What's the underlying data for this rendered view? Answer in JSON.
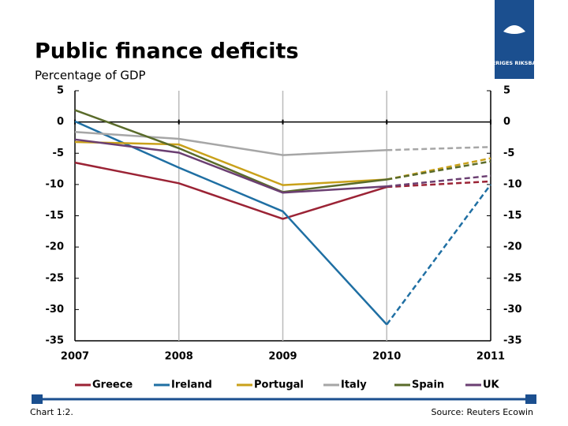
{
  "chart_data": {
    "type": "line",
    "title": "Public finance deficits",
    "subtitle": "Percentage of GDP",
    "note": "Chart 1:2.",
    "source": "Source: Reuters Ecowin",
    "logo_text": "SVERIGES RIKSBANK",
    "x": [
      2007,
      2008,
      2009,
      2010,
      2011
    ],
    "xlim": [
      2007,
      2011
    ],
    "xticks": [
      2007,
      2008,
      2009,
      2010,
      2011
    ],
    "ylim": [
      -35,
      5
    ],
    "yticks": [
      5,
      0,
      -5,
      -10,
      -15,
      -20,
      -25,
      -30,
      -35
    ],
    "forecast_from_x": 2010,
    "grid": true,
    "series": [
      {
        "name": "Greece",
        "color": "#9b2335",
        "values": [
          -6.5,
          -9.8,
          -15.5,
          -10.4,
          -9.5
        ]
      },
      {
        "name": "Ireland",
        "color": "#1f6fa3",
        "values": [
          0.1,
          -7.3,
          -14.3,
          -32.4,
          -10.0
        ]
      },
      {
        "name": "Portugal",
        "color": "#c9a11a",
        "values": [
          -3.2,
          -3.6,
          -10.1,
          -9.2,
          -5.8
        ]
      },
      {
        "name": "Italy",
        "color": "#a6a6a6",
        "values": [
          -1.6,
          -2.7,
          -5.3,
          -4.5,
          -4.0
        ]
      },
      {
        "name": "Spain",
        "color": "#5a6b2a",
        "values": [
          1.9,
          -4.2,
          -11.2,
          -9.2,
          -6.3
        ]
      },
      {
        "name": "UK",
        "color": "#6b3f72",
        "values": [
          -2.8,
          -4.9,
          -11.3,
          -10.3,
          -8.6
        ]
      }
    ]
  }
}
